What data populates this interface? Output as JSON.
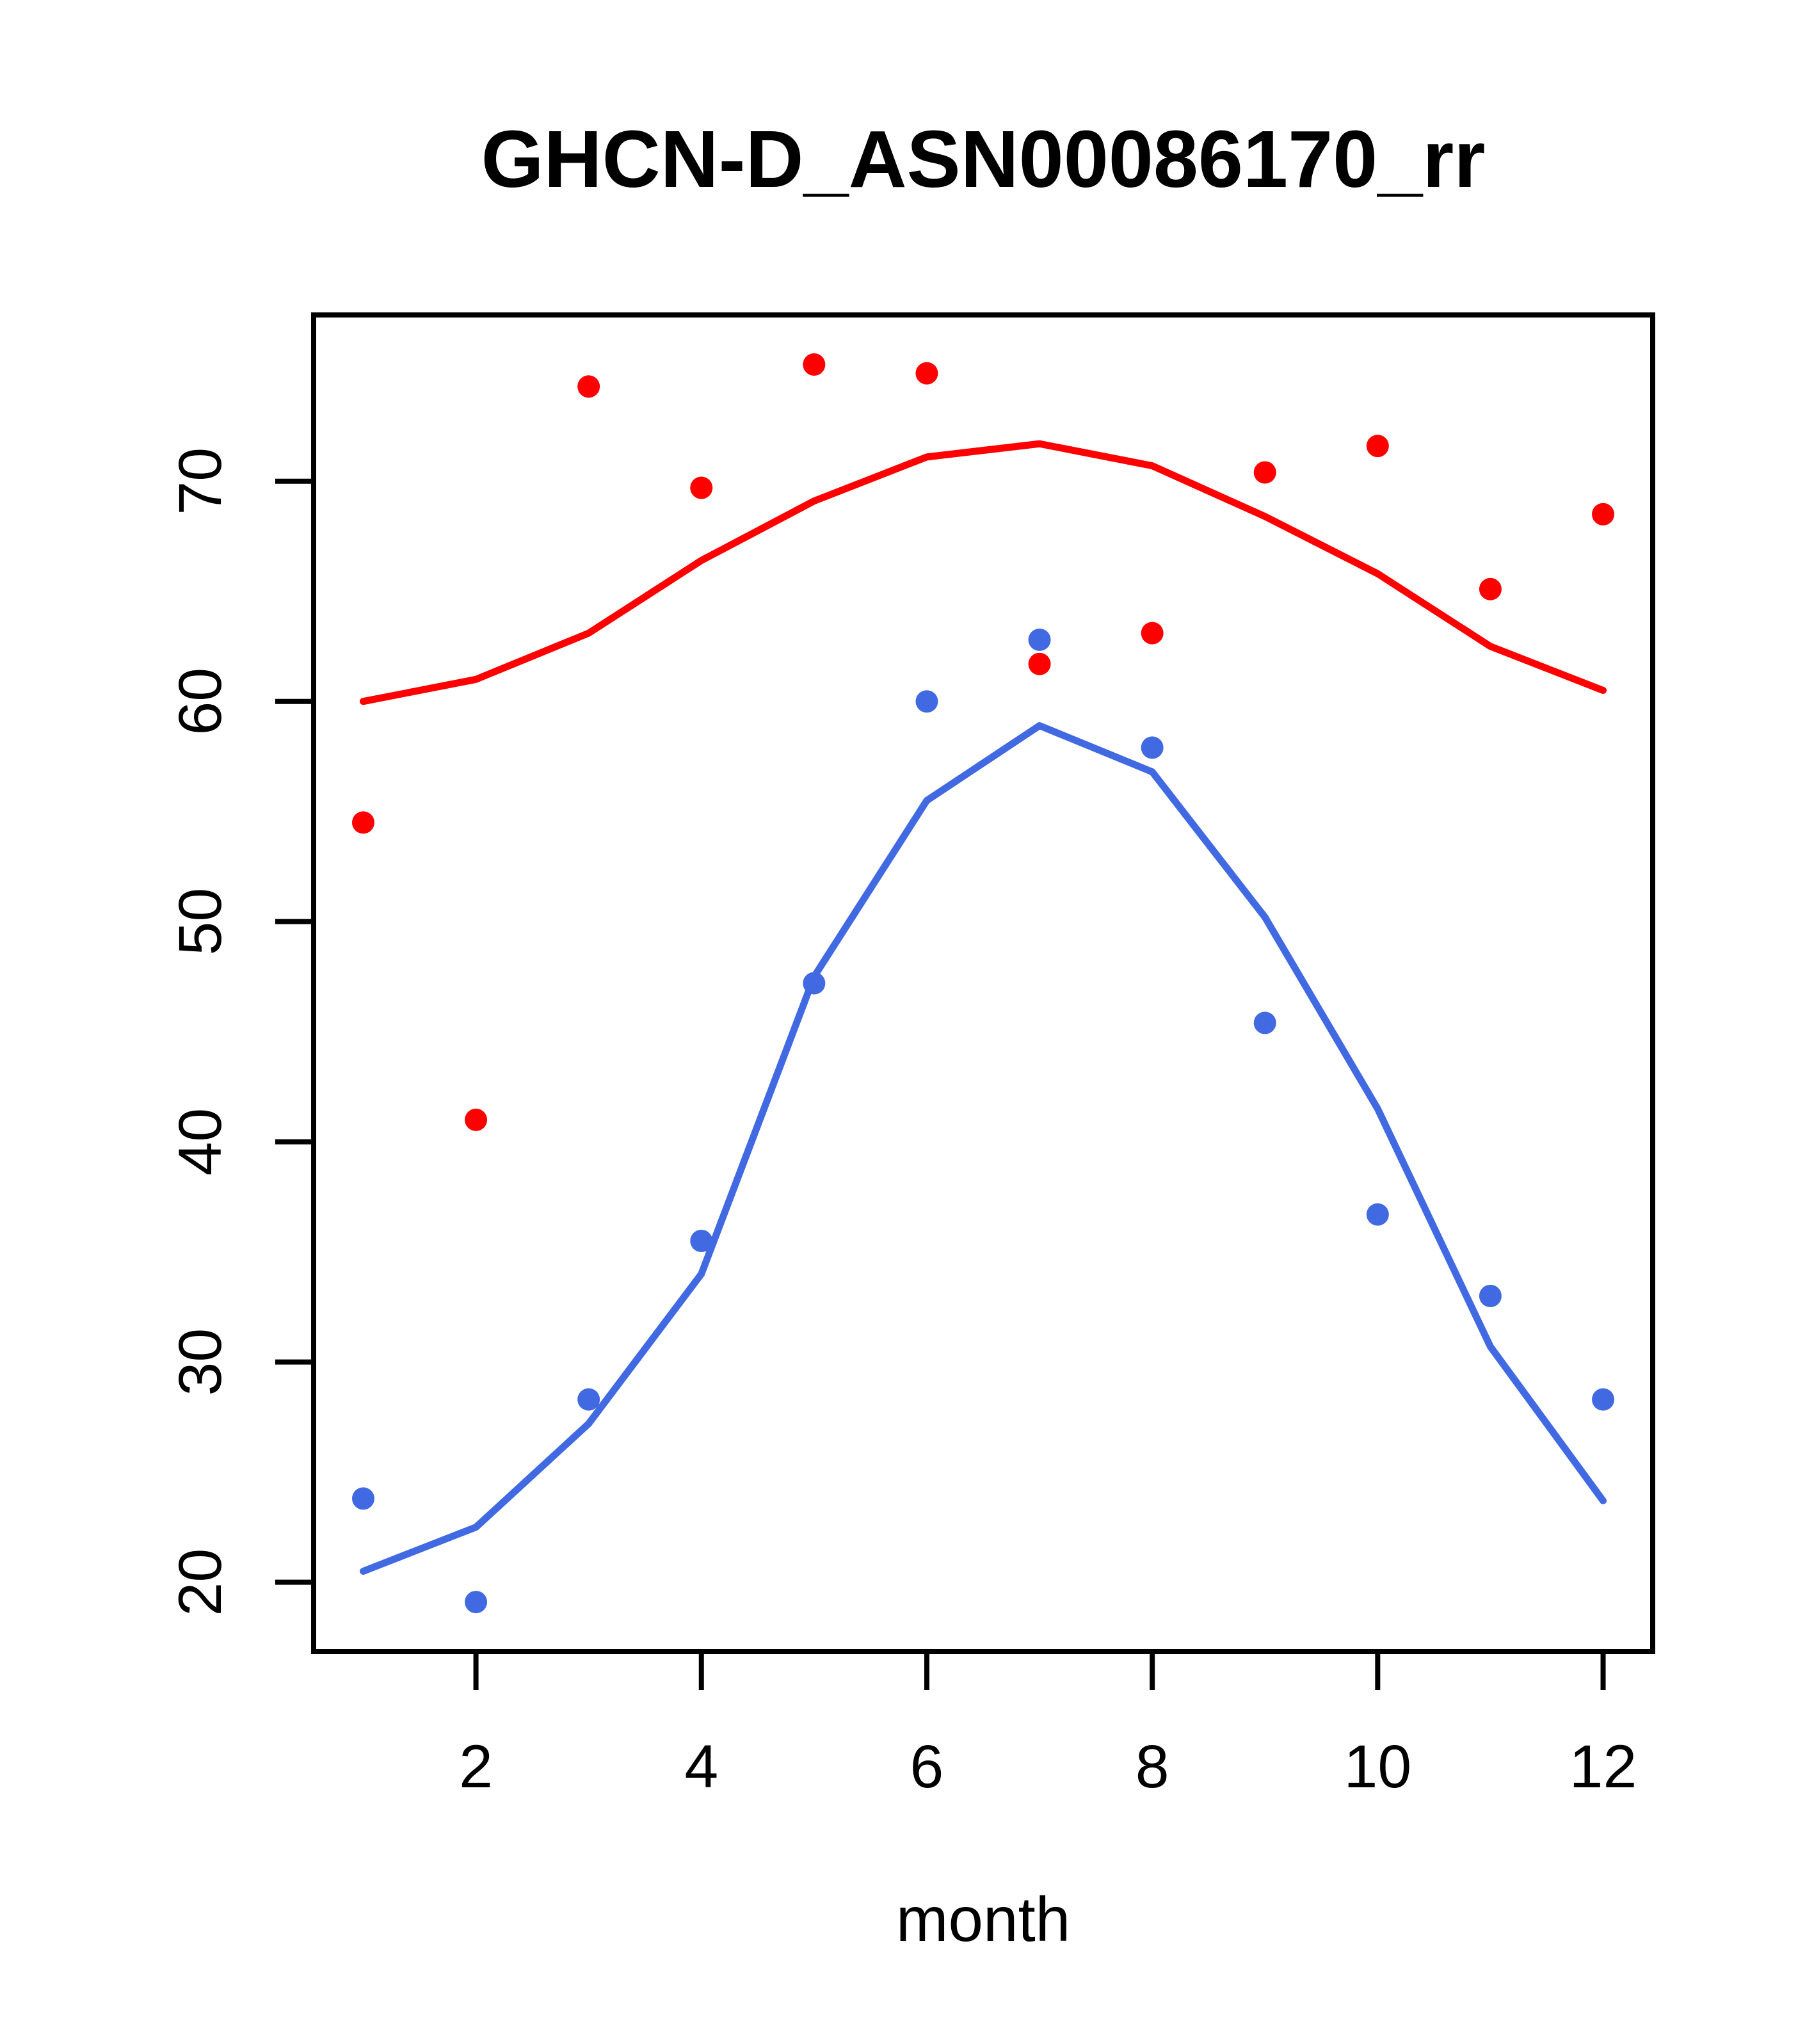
{
  "title": "GHCN-D_ASN00086170_rr",
  "chart_data": {
    "type": "scatter",
    "title": "GHCN-D_ASN00086170_rr",
    "xlabel": "month",
    "ylabel": "",
    "x_ticks": [
      2,
      4,
      6,
      8,
      10,
      12
    ],
    "y_ticks": [
      20,
      30,
      40,
      50,
      60,
      70
    ],
    "xlim": [
      0.56,
      12.44
    ],
    "ylim": [
      16.85,
      77.55
    ],
    "grid": false,
    "legend": "none",
    "x": [
      1,
      2,
      3,
      4,
      5,
      6,
      7,
      8,
      9,
      10,
      11,
      12
    ],
    "series": [
      {
        "name": "red-points",
        "kind": "points",
        "color": "#FF0000",
        "values": [
          54.5,
          41.0,
          74.3,
          69.7,
          75.3,
          74.9,
          61.7,
          63.1,
          70.4,
          71.6,
          65.1,
          68.5
        ]
      },
      {
        "name": "red-smooth-line",
        "kind": "line",
        "color": "#FF0000",
        "values": [
          60.0,
          61.0,
          63.1,
          66.4,
          69.1,
          71.1,
          71.7,
          70.7,
          68.4,
          65.8,
          62.5,
          60.5
        ]
      },
      {
        "name": "blue-points",
        "kind": "points",
        "color": "#4169E1",
        "values": [
          23.8,
          19.1,
          28.3,
          35.5,
          47.2,
          60.0,
          62.8,
          57.9,
          45.4,
          36.7,
          33.0,
          28.3
        ]
      },
      {
        "name": "blue-smooth-line",
        "kind": "line",
        "color": "#4169E1",
        "values": [
          20.5,
          22.5,
          27.2,
          34.0,
          47.5,
          55.5,
          58.9,
          56.8,
          50.2,
          41.5,
          30.7,
          23.7
        ]
      }
    ]
  }
}
